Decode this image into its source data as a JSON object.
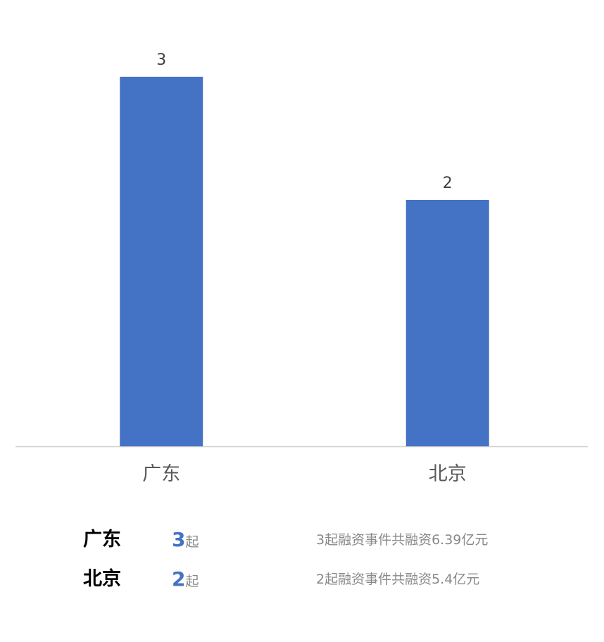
{
  "chart_data": {
    "type": "bar",
    "categories": [
      "广东",
      "北京"
    ],
    "values": [
      3,
      2
    ],
    "data_labels": [
      "3",
      "2"
    ],
    "title": "",
    "xlabel": "",
    "ylabel": "",
    "ylim": [
      0,
      3
    ],
    "grid": false,
    "legend": "none",
    "bar_color": "#4472c4"
  },
  "summary": [
    {
      "region": "广东",
      "count": "3",
      "unit": "起",
      "description": "3起融资事件共融资6.39亿元"
    },
    {
      "region": "北京",
      "count": "2",
      "unit": "起",
      "description": "2起融资事件共融资5.4亿元"
    }
  ]
}
